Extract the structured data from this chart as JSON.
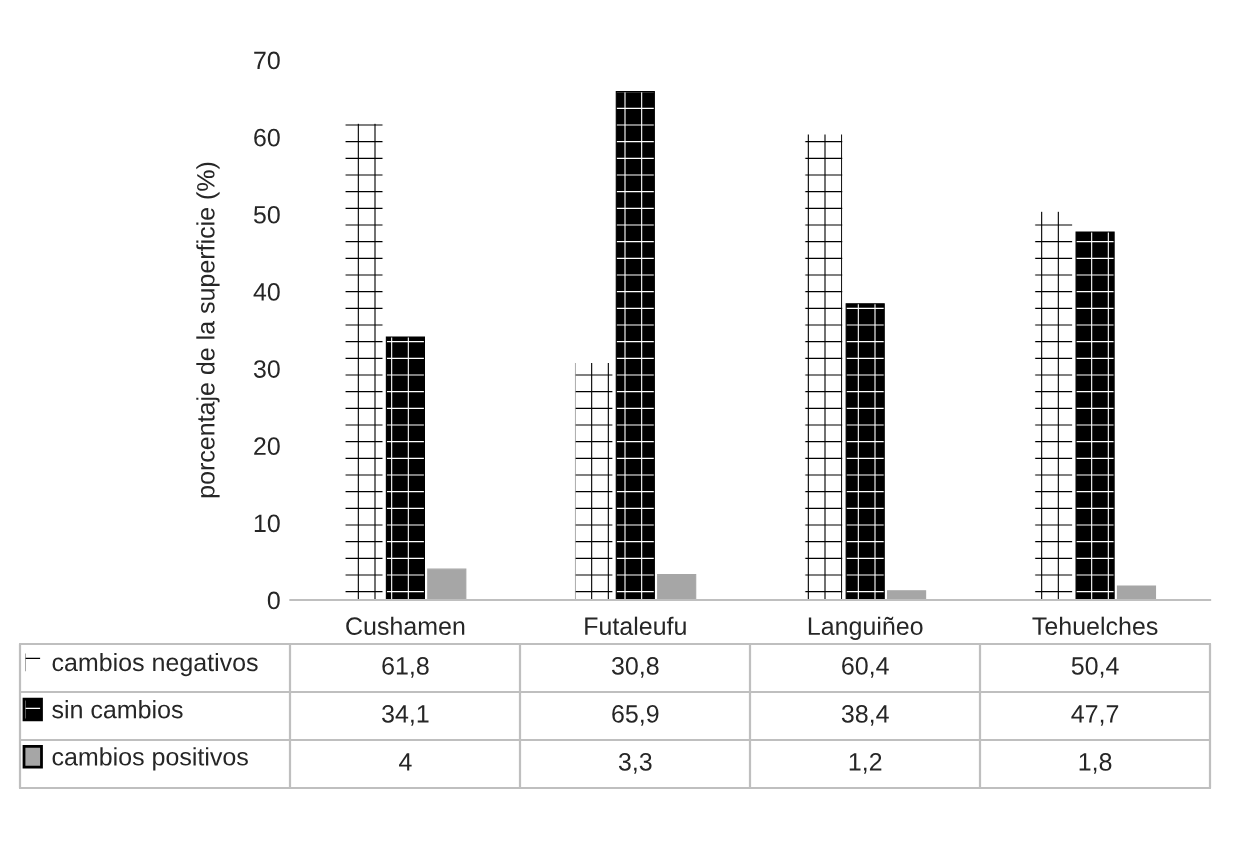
{
  "chart_data": {
    "type": "bar",
    "ylabel": "porcentaje de la superficie (%)",
    "categories": [
      "Cushamen",
      "Futaleufu",
      "Languiñeo",
      "Tehuelches"
    ],
    "series": [
      {
        "name": "cambios negativos",
        "color": "#ffffff",
        "values": [
          61.8,
          30.8,
          60.4,
          50.4
        ],
        "value_labels": [
          "61,8",
          "30,8",
          "60,4",
          "50,4"
        ]
      },
      {
        "name": "sin cambios",
        "color": "#000000",
        "values": [
          34.1,
          65.9,
          38.4,
          47.7
        ],
        "value_labels": [
          "34,1",
          "65,9",
          "38,4",
          "47,7"
        ]
      },
      {
        "name": "cambios positivos",
        "color": "#a6a6a6",
        "values": [
          4,
          3.3,
          1.2,
          1.8
        ],
        "value_labels": [
          "4",
          "3,3",
          "1,2",
          "1,8"
        ]
      }
    ],
    "ylim": [
      0,
      70
    ],
    "yticks": [
      0,
      10,
      20,
      30,
      40,
      50,
      60,
      70
    ],
    "grid": false,
    "legend": "bottom"
  }
}
